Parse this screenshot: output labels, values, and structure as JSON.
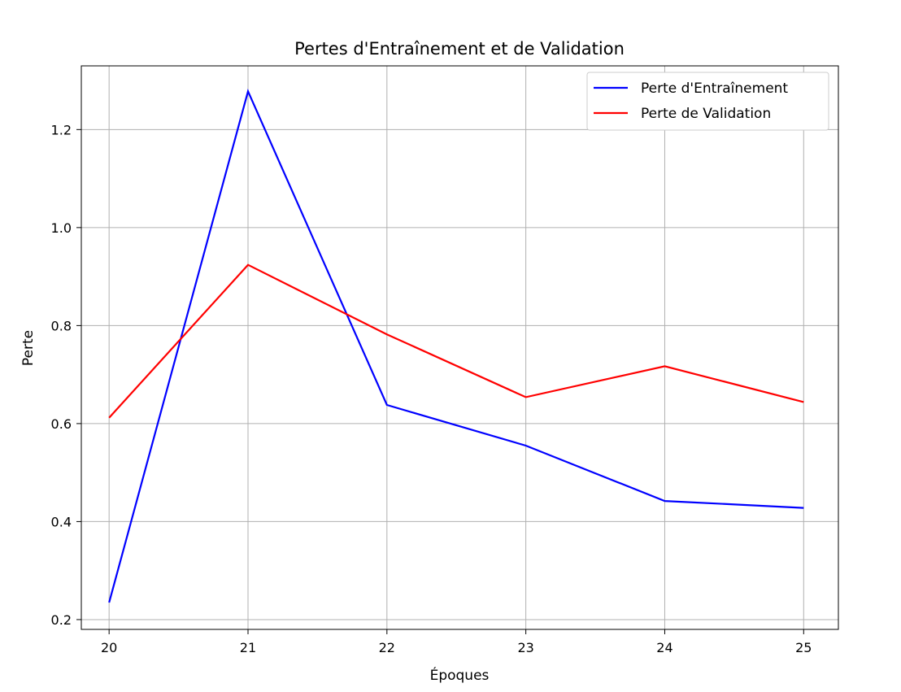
{
  "chart_data": {
    "type": "line",
    "title": "Pertes d'Entraînement et de Validation",
    "xlabel": "Époques",
    "ylabel": "Perte",
    "x": [
      20,
      21,
      22,
      23,
      24,
      25
    ],
    "xticks": [
      "20",
      "21",
      "22",
      "23",
      "24",
      "25"
    ],
    "yticks": [
      "0.2",
      "0.4",
      "0.6",
      "0.8",
      "1.0",
      "1.2"
    ],
    "xlim": [
      19.8,
      25.25
    ],
    "ylim": [
      0.18,
      1.33
    ],
    "grid": true,
    "legend_position": "top-right",
    "series": [
      {
        "name": "Perte d'Entraînement",
        "color": "#0000ff",
        "values": [
          0.235,
          1.278,
          0.638,
          0.555,
          0.442,
          0.428
        ]
      },
      {
        "name": "Perte de Validation",
        "color": "#ff0000",
        "values": [
          0.612,
          0.924,
          0.782,
          0.654,
          0.717,
          0.644
        ]
      }
    ]
  }
}
